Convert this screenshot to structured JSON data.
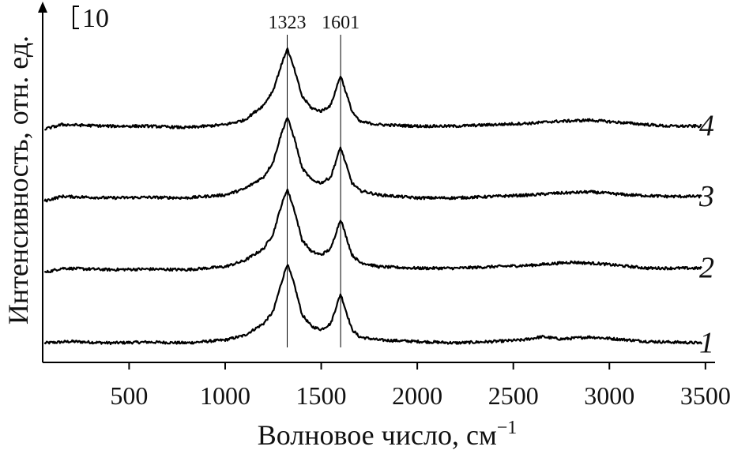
{
  "chart_data": {
    "type": "line",
    "xlabel": "Волновое число, см",
    "xlabel_superscript": "−1",
    "ylabel": "Интенсивность, отн. ед.",
    "scale_bar_label": "10",
    "scale_bar_value": 10,
    "x_ticks": [
      500,
      1000,
      1500,
      2000,
      2500,
      3000,
      3500
    ],
    "xlim": [
      50,
      3550
    ],
    "ylim": [
      -6,
      112
    ],
    "grid": false,
    "peak_markers": [
      {
        "label": "1323",
        "x": 1323
      },
      {
        "label": "1601",
        "x": 1601
      }
    ],
    "series": [
      {
        "name": "1",
        "offset": 0,
        "points": [
          [
            60,
            0.5
          ],
          [
            200,
            1.0
          ],
          [
            400,
            0.5
          ],
          [
            600,
            0.8
          ],
          [
            800,
            0.5
          ],
          [
            1000,
            1.5
          ],
          [
            1100,
            3
          ],
          [
            1200,
            7
          ],
          [
            1250,
            11
          ],
          [
            1290,
            20
          ],
          [
            1323,
            27
          ],
          [
            1360,
            20
          ],
          [
            1400,
            10
          ],
          [
            1450,
            6
          ],
          [
            1500,
            5
          ],
          [
            1550,
            7
          ],
          [
            1580,
            13
          ],
          [
            1601,
            17
          ],
          [
            1625,
            12
          ],
          [
            1660,
            5
          ],
          [
            1700,
            2.5
          ],
          [
            1800,
            1.5
          ],
          [
            2000,
            1
          ],
          [
            2200,
            0.5
          ],
          [
            2400,
            1
          ],
          [
            2550,
            1.5
          ],
          [
            2650,
            2.6
          ],
          [
            2750,
            1.8
          ],
          [
            2900,
            2.5
          ],
          [
            3000,
            2
          ],
          [
            3200,
            1
          ],
          [
            3480,
            0.5
          ]
        ]
      },
      {
        "name": "2",
        "offset": 24,
        "points": [
          [
            60,
            0
          ],
          [
            150,
            1.5
          ],
          [
            400,
            1
          ],
          [
            600,
            1.2
          ],
          [
            800,
            1
          ],
          [
            1000,
            2
          ],
          [
            1100,
            4
          ],
          [
            1200,
            8
          ],
          [
            1250,
            13
          ],
          [
            1290,
            22
          ],
          [
            1323,
            28
          ],
          [
            1360,
            21
          ],
          [
            1400,
            11
          ],
          [
            1450,
            7
          ],
          [
            1500,
            6
          ],
          [
            1550,
            8
          ],
          [
            1580,
            14
          ],
          [
            1601,
            18
          ],
          [
            1625,
            13
          ],
          [
            1660,
            6
          ],
          [
            1700,
            3.5
          ],
          [
            1800,
            2
          ],
          [
            2000,
            1.5
          ],
          [
            2200,
            1.5
          ],
          [
            2400,
            2
          ],
          [
            2600,
            2.5
          ],
          [
            2800,
            3.5
          ],
          [
            2950,
            3
          ],
          [
            3200,
            1.5
          ],
          [
            3480,
            1.5
          ]
        ]
      },
      {
        "name": "3",
        "offset": 48,
        "points": [
          [
            60,
            0
          ],
          [
            150,
            1.5
          ],
          [
            400,
            1
          ],
          [
            600,
            1.2
          ],
          [
            800,
            1
          ],
          [
            1000,
            2
          ],
          [
            1100,
            4
          ],
          [
            1200,
            8
          ],
          [
            1250,
            13
          ],
          [
            1290,
            22
          ],
          [
            1323,
            28
          ],
          [
            1360,
            21
          ],
          [
            1400,
            11
          ],
          [
            1450,
            7
          ],
          [
            1500,
            6
          ],
          [
            1550,
            8
          ],
          [
            1580,
            14
          ],
          [
            1601,
            18
          ],
          [
            1625,
            13
          ],
          [
            1660,
            6
          ],
          [
            1700,
            3.5
          ],
          [
            1800,
            2
          ],
          [
            2000,
            1
          ],
          [
            2200,
            1
          ],
          [
            2400,
            1.5
          ],
          [
            2600,
            2
          ],
          [
            2700,
            2.5
          ],
          [
            2900,
            3
          ],
          [
            3100,
            2
          ],
          [
            3300,
            1.5
          ],
          [
            3480,
            1.5
          ]
        ]
      },
      {
        "name": "4",
        "offset": 72,
        "points": [
          [
            60,
            0
          ],
          [
            150,
            1.5
          ],
          [
            400,
            1
          ],
          [
            600,
            1
          ],
          [
            800,
            0.5
          ],
          [
            1000,
            1.5
          ],
          [
            1100,
            3
          ],
          [
            1200,
            8
          ],
          [
            1250,
            13
          ],
          [
            1290,
            21
          ],
          [
            1323,
            27
          ],
          [
            1360,
            20
          ],
          [
            1400,
            11
          ],
          [
            1450,
            7
          ],
          [
            1500,
            6
          ],
          [
            1550,
            8
          ],
          [
            1580,
            14
          ],
          [
            1601,
            18
          ],
          [
            1625,
            13
          ],
          [
            1660,
            6
          ],
          [
            1700,
            2.5
          ],
          [
            1800,
            1.5
          ],
          [
            2000,
            1
          ],
          [
            2200,
            1
          ],
          [
            2400,
            1.5
          ],
          [
            2600,
            2
          ],
          [
            2700,
            2.5
          ],
          [
            2900,
            3
          ],
          [
            3100,
            2
          ],
          [
            3300,
            1
          ],
          [
            3480,
            1
          ]
        ]
      }
    ]
  }
}
